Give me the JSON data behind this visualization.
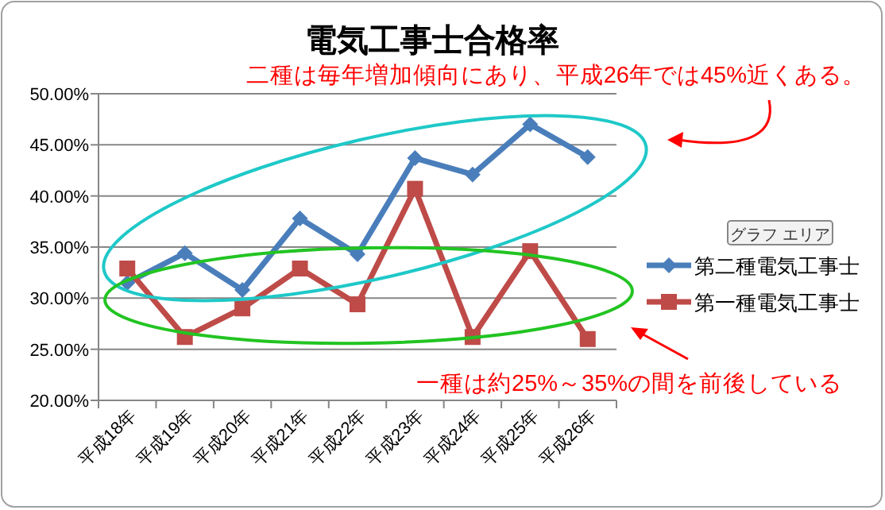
{
  "chart_data": {
    "type": "line",
    "title": "電気工事士合格率",
    "categories": [
      "平成18年",
      "平成19年",
      "平成20年",
      "平成21年",
      "平成22年",
      "平成23年",
      "平成24年",
      "平成25年",
      "平成26年"
    ],
    "series": [
      {
        "name": "第二種電気工事士",
        "color": "#4a7ebb",
        "marker": "diamond",
        "values": [
          31.5,
          34.4,
          30.8,
          37.8,
          34.3,
          43.7,
          42.1,
          47.0,
          43.8
        ]
      },
      {
        "name": "第一種電気工事士",
        "color": "#be4b48",
        "marker": "square",
        "values": [
          32.9,
          26.2,
          29.0,
          32.9,
          29.4,
          40.7,
          26.2,
          34.6,
          26.0
        ]
      }
    ],
    "ylim": [
      20,
      50
    ],
    "yticks": [
      {
        "value": 20,
        "label": "20.00%"
      },
      {
        "value": 25,
        "label": "25.00%"
      },
      {
        "value": 30,
        "label": "30.00%"
      },
      {
        "value": 35,
        "label": "35.00%"
      },
      {
        "value": 40,
        "label": "40.00%"
      },
      {
        "value": 45,
        "label": "45.00%"
      },
      {
        "value": 50,
        "label": "50.00%"
      }
    ],
    "grid": "y",
    "legend": "right",
    "line_style": "solid",
    "annotations": [
      "二種は毎年増加傾向にあり、平成26年では45%近くある。",
      "一種は約25%～35%の間を前後している",
      "グラフ エリア"
    ]
  }
}
